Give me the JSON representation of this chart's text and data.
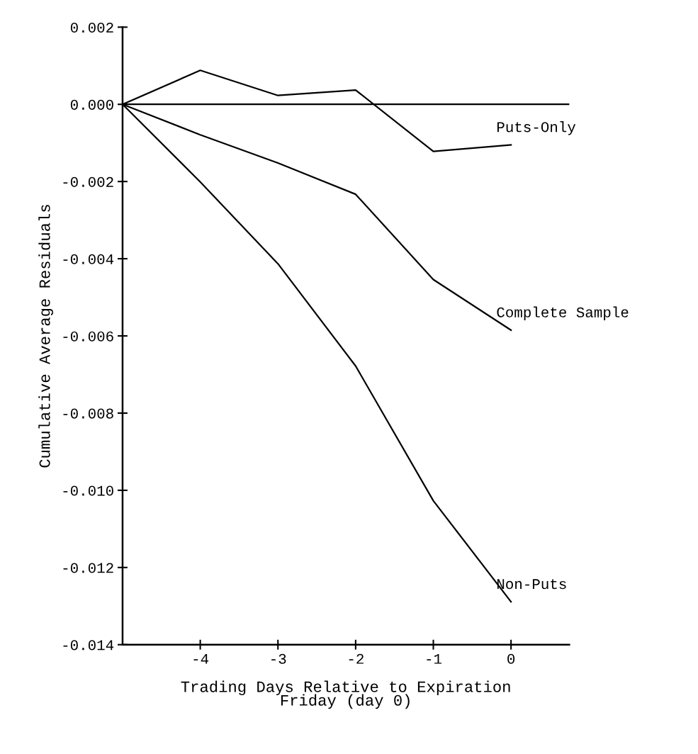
{
  "chart_data": {
    "type": "line",
    "xlabel": "Trading Days Relative to Expiration\nFriday (day 0)",
    "ylabel": "Cumulative Average Residuals",
    "x": [
      -5,
      -4,
      -3,
      -2,
      -1,
      0
    ],
    "series": [
      {
        "name": "Puts-Only",
        "color": "#000000",
        "values": [
          0,
          0.00088,
          0.00023,
          0.00037,
          -0.00122,
          -0.00105
        ]
      },
      {
        "name": "Complete Sample",
        "color": "#000000",
        "values": [
          0,
          -0.00079,
          -0.00152,
          -0.00233,
          -0.00454,
          -0.00585
        ]
      },
      {
        "name": "Non-Puts",
        "color": "#000000",
        "values": [
          0,
          -0.00201,
          -0.00413,
          -0.00678,
          -0.01027,
          -0.01289
        ]
      }
    ],
    "ref_lines": [
      {
        "axis": "y",
        "value": 0,
        "color": "#000000"
      }
    ],
    "xlim": [
      -5,
      0.75
    ],
    "xticks": [
      -4,
      -3,
      -2,
      -1,
      0
    ],
    "ylim": [
      -0.014,
      0.002
    ],
    "yticks": [
      {
        "value": 0.002,
        "label": "0.002"
      },
      {
        "value": 0,
        "label": "0.000"
      },
      {
        "value": -0.002,
        "label": "-0.002"
      },
      {
        "value": -0.004,
        "label": "-0.004"
      },
      {
        "value": -0.006,
        "label": "-0.006"
      },
      {
        "value": -0.008,
        "label": "-0.008"
      },
      {
        "value": -0.01,
        "label": "-0.010"
      },
      {
        "value": -0.012,
        "label": "-0.012"
      },
      {
        "value": -0.014,
        "label": "-0.014"
      }
    ],
    "grid": false,
    "legend": false,
    "marker": "none",
    "line_style": "solid"
  }
}
